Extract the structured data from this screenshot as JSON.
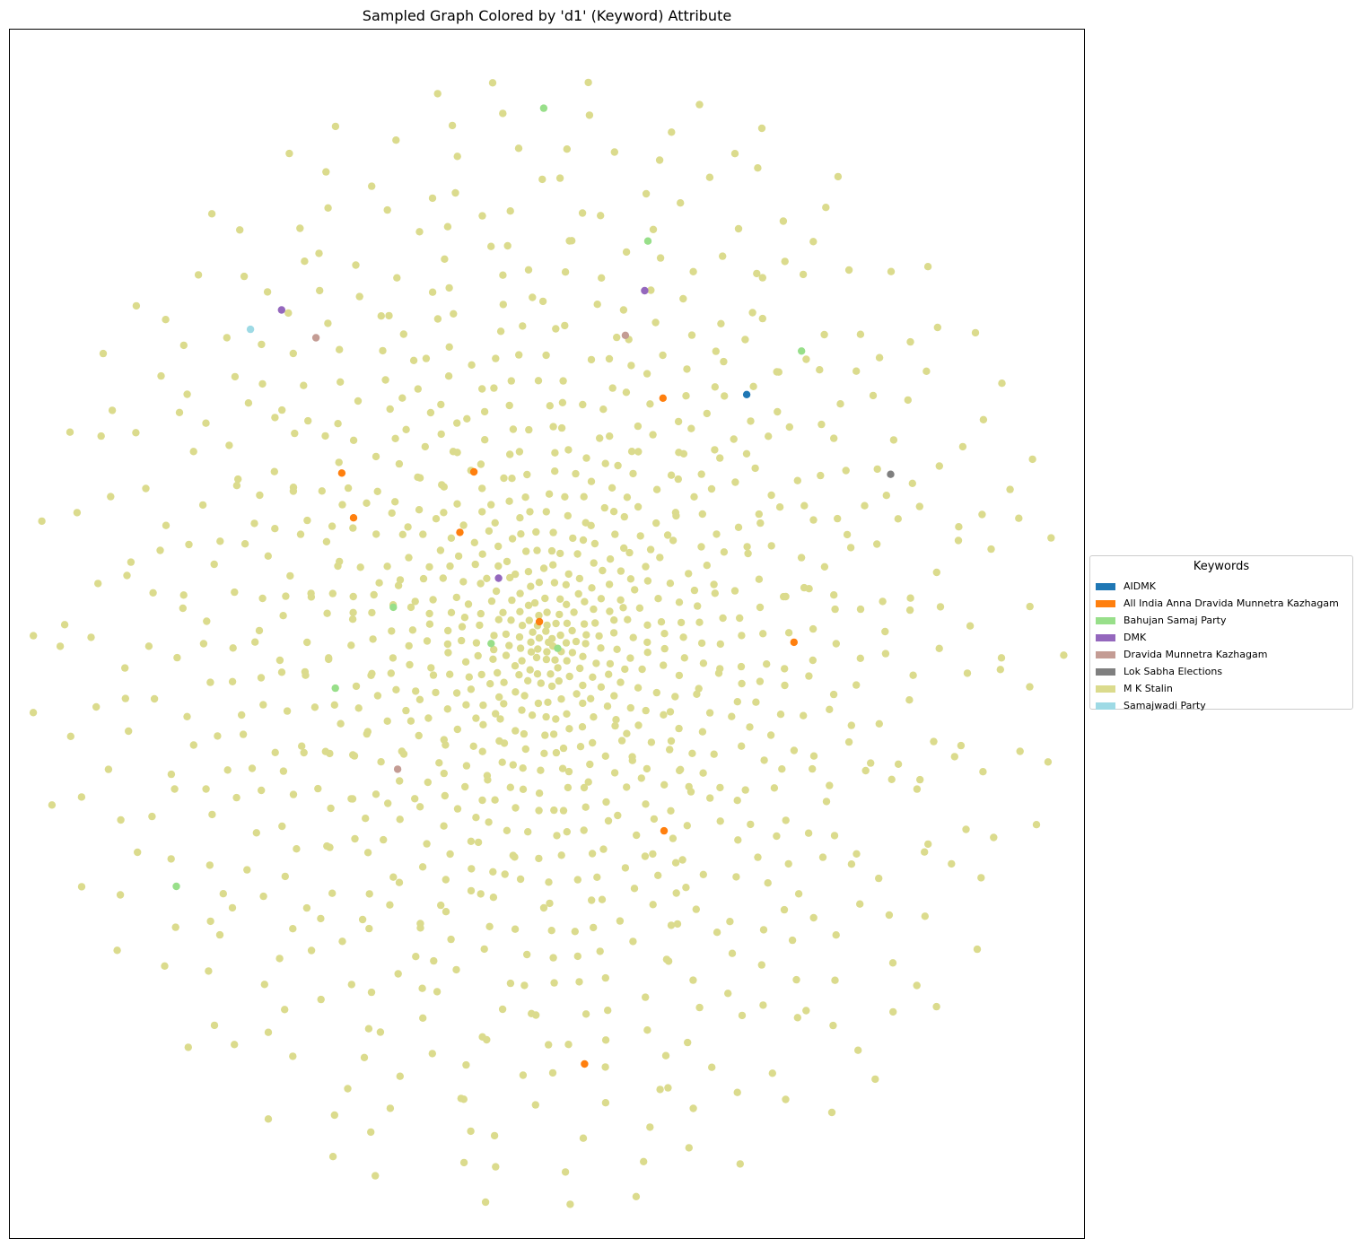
{
  "chart_data": {
    "type": "scatter",
    "title": "Sampled Graph Colored by 'd1' (Keyword) Attribute",
    "xlabel": "",
    "ylabel": "",
    "axes_ticks": false,
    "grid": false,
    "legend": {
      "title": "Keywords",
      "placement": "center-left, outside right of plot",
      "entries": [
        {
          "label": "AIDMK",
          "color": "#1f77b4"
        },
        {
          "label": "All India Anna Dravida Munnetra Kazhagam",
          "color": "#ff7f0e"
        },
        {
          "label": "Bahujan Samaj Party",
          "color": "#98df8a"
        },
        {
          "label": "DMK",
          "color": "#9467bd"
        },
        {
          "label": "Dravida Munnetra Kazhagam",
          "color": "#c49c94"
        },
        {
          "label": "Lok Sabha Elections",
          "color": "#7f7f7f"
        },
        {
          "label": "M K Stalin",
          "color": "#dbdb8d"
        },
        {
          "label": "Samajwadi Party",
          "color": "#9edae5"
        }
      ]
    },
    "layout": "radial graph layout, dense cluster near center",
    "default_keyword": "M K Stalin",
    "highlighted_nodes": [
      {
        "keyword": "AIDMK",
        "x": 0.686,
        "y": 0.698
      },
      {
        "keyword": "All India Anna Dravida Munnetra Kazhagam",
        "x": 0.608,
        "y": 0.695
      },
      {
        "keyword": "All India Anna Dravida Munnetra Kazhagam",
        "x": 0.309,
        "y": 0.633
      },
      {
        "keyword": "All India Anna Dravida Munnetra Kazhagam",
        "x": 0.432,
        "y": 0.634
      },
      {
        "keyword": "All India Anna Dravida Munnetra Kazhagam",
        "x": 0.32,
        "y": 0.596
      },
      {
        "keyword": "All India Anna Dravida Munnetra Kazhagam",
        "x": 0.419,
        "y": 0.584
      },
      {
        "keyword": "All India Anna Dravida Munnetra Kazhagam",
        "x": 0.493,
        "y": 0.51
      },
      {
        "keyword": "All India Anna Dravida Munnetra Kazhagam",
        "x": 0.73,
        "y": 0.493
      },
      {
        "keyword": "All India Anna Dravida Munnetra Kazhagam",
        "x": 0.609,
        "y": 0.337
      },
      {
        "keyword": "All India Anna Dravida Munnetra Kazhagam",
        "x": 0.535,
        "y": 0.144
      },
      {
        "keyword": "Bahujan Samaj Party",
        "x": 0.497,
        "y": 0.935
      },
      {
        "keyword": "Bahujan Samaj Party",
        "x": 0.594,
        "y": 0.825
      },
      {
        "keyword": "Bahujan Samaj Party",
        "x": 0.737,
        "y": 0.734
      },
      {
        "keyword": "Bahujan Samaj Party",
        "x": 0.357,
        "y": 0.522
      },
      {
        "keyword": "Bahujan Samaj Party",
        "x": 0.448,
        "y": 0.492
      },
      {
        "keyword": "Bahujan Samaj Party",
        "x": 0.51,
        "y": 0.488
      },
      {
        "keyword": "Bahujan Samaj Party",
        "x": 0.303,
        "y": 0.455
      },
      {
        "keyword": "Bahujan Samaj Party",
        "x": 0.155,
        "y": 0.291
      },
      {
        "keyword": "DMK",
        "x": 0.591,
        "y": 0.784
      },
      {
        "keyword": "DMK",
        "x": 0.253,
        "y": 0.768
      },
      {
        "keyword": "DMK",
        "x": 0.455,
        "y": 0.546
      },
      {
        "keyword": "Dravida Munnetra Kazhagam",
        "x": 0.285,
        "y": 0.745
      },
      {
        "keyword": "Dravida Munnetra Kazhagam",
        "x": 0.573,
        "y": 0.747
      },
      {
        "keyword": "Dravida Munnetra Kazhagam",
        "x": 0.361,
        "y": 0.388
      },
      {
        "keyword": "Lok Sabha Elections",
        "x": 0.82,
        "y": 0.632
      },
      {
        "keyword": "Samajwadi Party",
        "x": 0.224,
        "y": 0.752
      }
    ]
  }
}
